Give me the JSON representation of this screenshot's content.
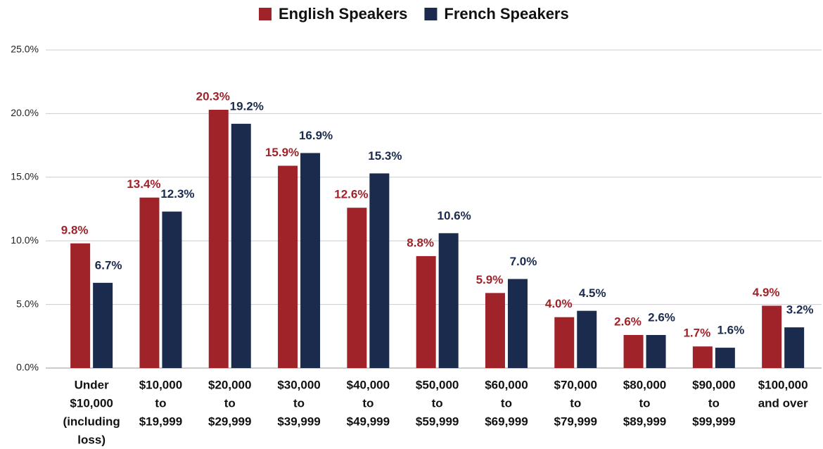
{
  "chart_data": {
    "type": "bar",
    "categories": [
      [
        "Under",
        "$10,000",
        "(including",
        "loss)"
      ],
      [
        "$10,000",
        "to",
        "$19,999"
      ],
      [
        "$20,000",
        "to",
        "$29,999"
      ],
      [
        "$30,000",
        "to",
        "$39,999"
      ],
      [
        "$40,000",
        "to",
        "$49,999"
      ],
      [
        "$50,000",
        "to",
        "$59,999"
      ],
      [
        "$60,000",
        "to",
        "$69,999"
      ],
      [
        "$70,000",
        "to",
        "$79,999"
      ],
      [
        "$80,000",
        "to",
        "$89,999"
      ],
      [
        "$90,000",
        "to",
        "$99,999"
      ],
      [
        "$100,000",
        "and over"
      ]
    ],
    "series": [
      {
        "name": "English Speakers",
        "color": "#a0232a",
        "values": [
          9.8,
          13.4,
          20.3,
          15.9,
          12.6,
          8.8,
          5.9,
          4.0,
          2.6,
          1.7,
          4.9
        ],
        "value_labels": [
          "9.8%",
          "13.4%",
          "20.3%",
          "15.9%",
          "12.6%",
          "8.8%",
          "5.9%",
          "4.0%",
          "2.6%",
          "1.7%",
          "4.9%"
        ]
      },
      {
        "name": "French Speakers",
        "color": "#1b2b4d",
        "values": [
          6.7,
          12.3,
          19.2,
          16.9,
          15.3,
          10.6,
          7.0,
          4.5,
          2.6,
          1.6,
          3.2
        ],
        "value_labels": [
          "6.7%",
          "12.3%",
          "19.2%",
          "16.9%",
          "15.3%",
          "10.6%",
          "7.0%",
          "4.5%",
          "2.6%",
          "1.6%",
          "3.2%"
        ]
      }
    ],
    "ylim": [
      0,
      25
    ],
    "yticks": [
      {
        "value": 0,
        "label": "0.0%"
      },
      {
        "value": 5,
        "label": "5.0%"
      },
      {
        "value": 10,
        "label": "10.0%"
      },
      {
        "value": 15,
        "label": "15.0%"
      },
      {
        "value": 20,
        "label": "20.0%"
      },
      {
        "value": 25,
        "label": "25.0%"
      }
    ],
    "grid": true,
    "legend": "top"
  }
}
